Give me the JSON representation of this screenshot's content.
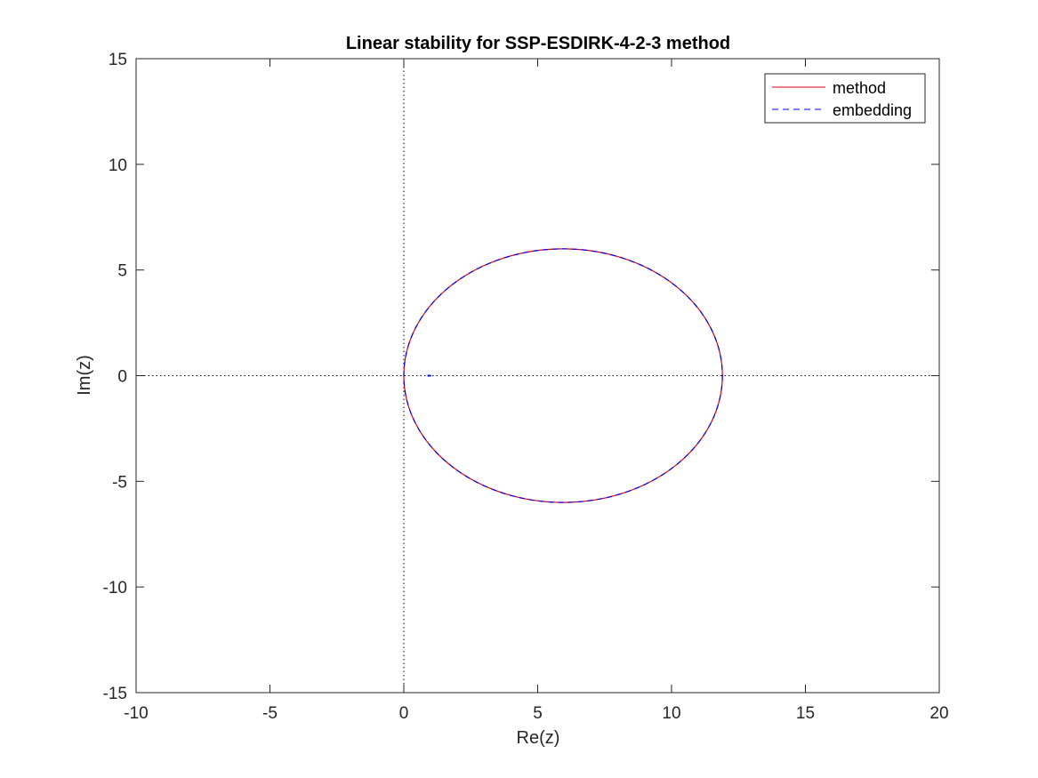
{
  "chart_data": {
    "type": "line",
    "title": "Linear stability for SSP-ESDIRK-4-2-3 method",
    "xlabel": "Re(z)",
    "ylabel": "Im(z)",
    "xlim": [
      -10,
      20
    ],
    "ylim": [
      -15,
      15
    ],
    "xticks": [
      -10,
      -5,
      0,
      5,
      10,
      15,
      20
    ],
    "yticks": [
      -15,
      -10,
      -5,
      0,
      5,
      10,
      15
    ],
    "xtick_labels": [
      "-10",
      "-5",
      "0",
      "5",
      "10",
      "15",
      "20"
    ],
    "ytick_labels": [
      "-15",
      "-10",
      "-5",
      "0",
      "5",
      "10",
      "15"
    ],
    "grid": false,
    "legend_position": "top-right",
    "reference_lines": [
      {
        "orientation": "vertical",
        "value": 0,
        "style": "dotted",
        "color": "#000000"
      },
      {
        "orientation": "horizontal",
        "value": 0,
        "style": "dotted",
        "color": "#000000"
      }
    ],
    "series": [
      {
        "name": "method",
        "shape": "ellipse",
        "center": [
          5.95,
          0
        ],
        "radius_x": 5.95,
        "radius_y": 6.0,
        "color": "#e0000f",
        "style": "solid"
      },
      {
        "name": "embedding",
        "shape": "ellipse",
        "center": [
          5.95,
          0
        ],
        "radius_x": 5.95,
        "radius_y": 6.0,
        "color": "#0000ff",
        "style": "dashed",
        "extra_points": [
          [
            0.95,
            0
          ]
        ]
      }
    ]
  }
}
